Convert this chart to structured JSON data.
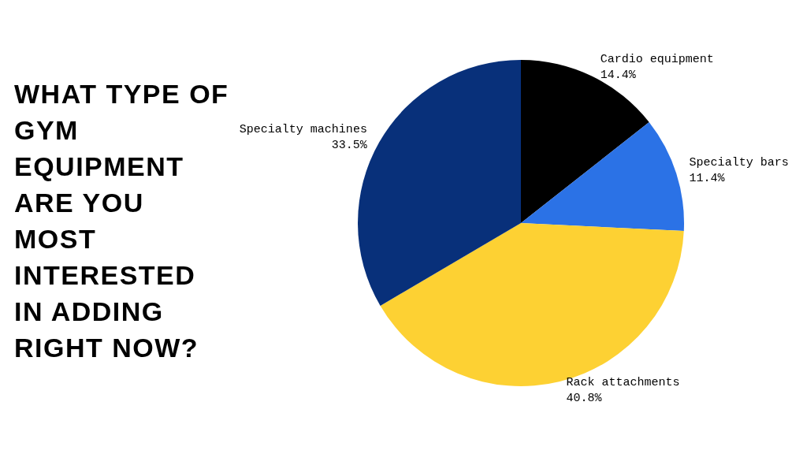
{
  "chart_data": {
    "type": "pie",
    "title": "WHAT TYPE OF GYM EQUIPMENT ARE YOU MOST INTERESTED IN ADDING RIGHT NOW?",
    "categories": [
      "Cardio equipment",
      "Specialty bars",
      "Rack attachments",
      "Specialty machines"
    ],
    "values": [
      14.4,
      11.4,
      40.8,
      33.5
    ],
    "colors": [
      "#000000",
      "#2b72e6",
      "#fdd133",
      "#08307a"
    ],
    "value_labels": [
      "14.4%",
      "11.4%",
      "40.8%",
      "33.5%"
    ],
    "legend": false
  }
}
